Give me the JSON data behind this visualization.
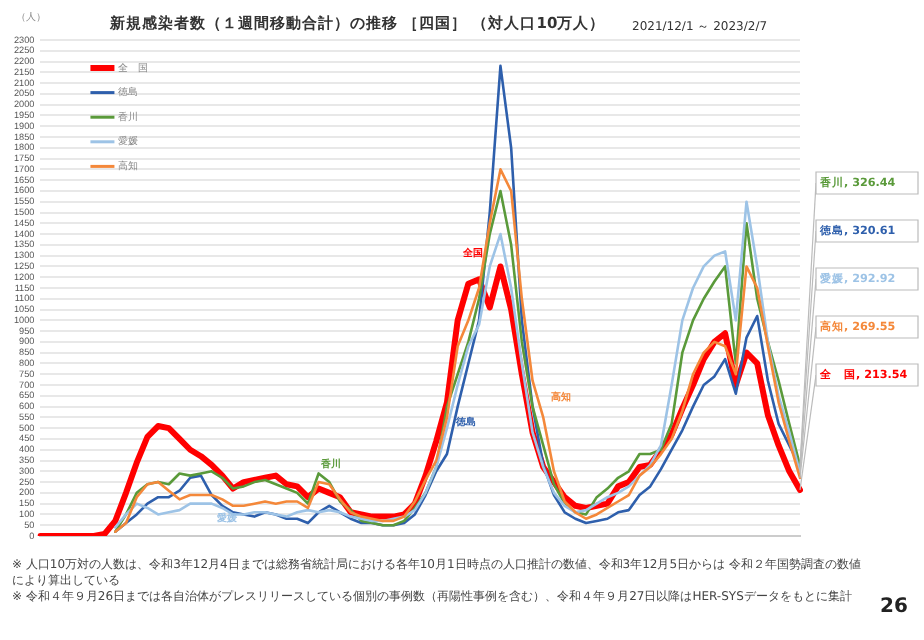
{
  "chart_data": {
    "type": "line",
    "title": "新規感染者数（１週間移動合計）の推移 ［四国］ （対人口10万人）",
    "subtitle": "2021/12/1 ～ 2023/2/7",
    "ylabel": "（人）",
    "categories": [
      null,
      null,
      null,
      null,
      null,
      null,
      null,
      null,
      null,
      null,
      null,
      null,
      null,
      null,
      null,
      null,
      null,
      null,
      null,
      null,
      null,
      null,
      null,
      null,
      null,
      null,
      null,
      null,
      null,
      null,
      null,
      null,
      null,
      null,
      null,
      null,
      null,
      null,
      null,
      null,
      null,
      null,
      null,
      null,
      null,
      null,
      null,
      null,
      null,
      null,
      null,
      null,
      null,
      null,
      null,
      null,
      null,
      null,
      null,
      null,
      null,
      null,
      null,
      null,
      null,
      null,
      null,
      null,
      null,
      null,
      null,
      null
    ],
    "ylim": [
      0,
      2300
    ],
    "yticks": [
      0,
      50,
      100,
      150,
      200,
      250,
      300,
      350,
      400,
      450,
      500,
      550,
      600,
      650,
      700,
      750,
      800,
      850,
      900,
      950,
      1000,
      1050,
      1100,
      1150,
      1200,
      1250,
      1300,
      1350,
      1400,
      1450,
      1500,
      1550,
      1600,
      1650,
      1700,
      1750,
      1800,
      1850,
      1900,
      1950,
      2000,
      2050,
      2100,
      2150,
      2200,
      2250,
      2300
    ],
    "grid": "y",
    "legend": "top left",
    "marker": "none",
    "line_style": "solid",
    "series": [
      {
        "name": "全　国",
        "color": "#ff0000",
        "values": [
          0,
          0,
          0,
          0,
          0,
          0,
          10,
          70,
          200,
          340,
          460,
          510,
          500,
          450,
          400,
          370,
          330,
          280,
          220,
          250,
          260,
          270,
          280,
          240,
          230,
          180,
          220,
          200,
          180,
          110,
          100,
          90,
          90,
          90,
          100,
          150,
          280,
          440,
          620,
          1000,
          1170,
          1190,
          1060,
          1250,
          1050,
          750,
          480,
          320,
          250,
          180,
          140,
          130,
          140,
          150,
          230,
          250,
          320,
          330,
          400,
          470,
          590,
          700,
          820,
          900,
          940,
          700,
          850,
          800,
          560,
          420,
          300,
          213.54
        ],
        "value_labels": [
          null,
          null,
          null,
          null,
          null,
          null,
          null,
          null,
          null,
          null,
          null,
          null,
          null,
          null,
          null,
          null,
          null,
          null,
          null,
          null,
          null,
          null,
          null,
          null,
          null,
          null,
          null,
          null,
          null,
          null,
          null,
          null,
          null,
          null,
          null,
          null,
          null,
          null,
          null,
          null,
          null,
          null,
          null,
          null,
          null,
          null,
          null,
          null,
          null,
          null,
          null,
          null,
          null,
          null,
          null,
          null,
          null,
          null,
          null,
          null,
          null,
          null,
          null,
          null,
          null,
          null,
          null,
          null,
          null,
          null,
          null,
          "全　国, 213.54"
        ]
      },
      {
        "name": "徳島",
        "color": "#2e5fac",
        "values": [
          null,
          null,
          null,
          null,
          null,
          null,
          null,
          20,
          60,
          100,
          150,
          180,
          180,
          210,
          270,
          280,
          190,
          140,
          110,
          100,
          90,
          110,
          100,
          80,
          80,
          60,
          110,
          140,
          110,
          80,
          60,
          60,
          50,
          50,
          60,
          100,
          190,
          300,
          380,
          600,
          800,
          1000,
          1500,
          2180,
          1800,
          1000,
          600,
          330,
          190,
          110,
          80,
          60,
          70,
          80,
          110,
          120,
          190,
          230,
          310,
          400,
          490,
          600,
          700,
          740,
          820,
          660,
          920,
          1020,
          720,
          520,
          420,
          320.61
        ],
        "value_labels": [
          null,
          null,
          null,
          null,
          null,
          null,
          null,
          null,
          null,
          null,
          null,
          null,
          null,
          null,
          null,
          null,
          null,
          null,
          null,
          null,
          null,
          null,
          null,
          null,
          null,
          null,
          null,
          null,
          null,
          null,
          null,
          null,
          null,
          null,
          null,
          null,
          null,
          null,
          null,
          null,
          null,
          null,
          null,
          null,
          null,
          null,
          null,
          null,
          null,
          null,
          null,
          null,
          null,
          null,
          null,
          null,
          null,
          null,
          null,
          null,
          null,
          null,
          null,
          null,
          null,
          null,
          null,
          null,
          null,
          null,
          null,
          "徳島, 320.61"
        ]
      },
      {
        "name": "香川",
        "color": "#5a9a3a",
        "values": [
          null,
          null,
          null,
          null,
          null,
          null,
          null,
          20,
          100,
          200,
          240,
          250,
          240,
          290,
          280,
          290,
          300,
          270,
          220,
          230,
          250,
          260,
          240,
          220,
          200,
          150,
          290,
          250,
          160,
          120,
          70,
          60,
          50,
          50,
          70,
          130,
          200,
          320,
          600,
          750,
          900,
          1100,
          1400,
          1600,
          1350,
          900,
          600,
          420,
          240,
          150,
          110,
          100,
          180,
          220,
          270,
          300,
          380,
          380,
          400,
          520,
          850,
          1000,
          1100,
          1180,
          1250,
          800,
          1450,
          1100,
          900,
          720,
          520,
          326.44
        ],
        "value_labels": [
          null,
          null,
          null,
          null,
          null,
          null,
          null,
          null,
          null,
          null,
          null,
          null,
          null,
          null,
          null,
          null,
          null,
          null,
          null,
          null,
          null,
          null,
          null,
          null,
          null,
          null,
          null,
          null,
          null,
          null,
          null,
          null,
          null,
          null,
          null,
          null,
          null,
          null,
          null,
          null,
          null,
          null,
          null,
          null,
          null,
          null,
          null,
          null,
          null,
          null,
          null,
          null,
          null,
          null,
          null,
          null,
          null,
          null,
          null,
          null,
          null,
          null,
          null,
          null,
          null,
          null,
          null,
          null,
          null,
          null,
          null,
          "香川, 326.44"
        ]
      },
      {
        "name": "愛媛",
        "color": "#9dc3e6",
        "values": [
          null,
          null,
          null,
          null,
          null,
          null,
          null,
          40,
          100,
          150,
          130,
          100,
          110,
          120,
          150,
          150,
          150,
          130,
          100,
          100,
          110,
          110,
          100,
          90,
          110,
          120,
          110,
          120,
          110,
          90,
          80,
          70,
          70,
          80,
          90,
          120,
          200,
          320,
          500,
          700,
          880,
          980,
          1250,
          1400,
          1150,
          800,
          480,
          320,
          200,
          140,
          110,
          120,
          150,
          180,
          200,
          230,
          280,
          330,
          420,
          700,
          1000,
          1150,
          1250,
          1300,
          1320,
          1000,
          1550,
          1250,
          900,
          650,
          480,
          292.92
        ],
        "value_labels": [
          null,
          null,
          null,
          null,
          null,
          null,
          null,
          null,
          null,
          null,
          null,
          null,
          null,
          null,
          null,
          null,
          null,
          null,
          null,
          null,
          null,
          null,
          null,
          null,
          null,
          null,
          null,
          null,
          null,
          null,
          null,
          null,
          null,
          null,
          null,
          null,
          null,
          null,
          null,
          null,
          null,
          null,
          null,
          null,
          null,
          null,
          null,
          null,
          null,
          null,
          null,
          null,
          null,
          null,
          null,
          null,
          null,
          null,
          null,
          null,
          null,
          null,
          null,
          null,
          null,
          null,
          null,
          null,
          null,
          null,
          null,
          "愛媛, 292.92"
        ]
      },
      {
        "name": "高知",
        "color": "#f4883a",
        "values": [
          null,
          null,
          null,
          null,
          null,
          null,
          null,
          20,
          60,
          180,
          240,
          250,
          210,
          170,
          190,
          190,
          190,
          170,
          140,
          140,
          150,
          160,
          150,
          160,
          160,
          130,
          250,
          240,
          170,
          110,
          90,
          80,
          70,
          70,
          90,
          160,
          260,
          350,
          550,
          880,
          1000,
          1150,
          1450,
          1700,
          1600,
          1100,
          720,
          550,
          300,
          160,
          110,
          80,
          100,
          130,
          160,
          190,
          280,
          320,
          380,
          450,
          580,
          750,
          850,
          900,
          880,
          750,
          1250,
          1150,
          880,
          620,
          440,
          269.55
        ],
        "value_labels": [
          null,
          null,
          null,
          null,
          null,
          null,
          null,
          null,
          null,
          null,
          null,
          null,
          null,
          null,
          null,
          null,
          null,
          null,
          null,
          null,
          null,
          null,
          null,
          null,
          null,
          null,
          null,
          null,
          null,
          null,
          null,
          null,
          null,
          null,
          null,
          null,
          null,
          null,
          null,
          null,
          null,
          null,
          null,
          null,
          null,
          null,
          null,
          null,
          null,
          null,
          null,
          null,
          null,
          null,
          null,
          null,
          null,
          null,
          null,
          null,
          null,
          null,
          null,
          null,
          null,
          null,
          null,
          null,
          null,
          null,
          null,
          "高知, 269.55"
        ]
      }
    ],
    "annotations": [
      "全国",
      "徳島",
      "香川",
      "愛媛",
      "高知",
      "※ 人口10万対の人数は、令和3年12月4日までは総務省統計局における各年10月1日時点の人口推計の数値、令和3年12月5日からは 令和２年国勢調査の数値により算出している",
      "※ 令和４年９月26日までは各自治体がプレスリリースしている個別の事例数（再陽性事例を含む）、令和４年９月27日以降はHER-SYSデータをもとに集計",
      "26"
    ]
  }
}
